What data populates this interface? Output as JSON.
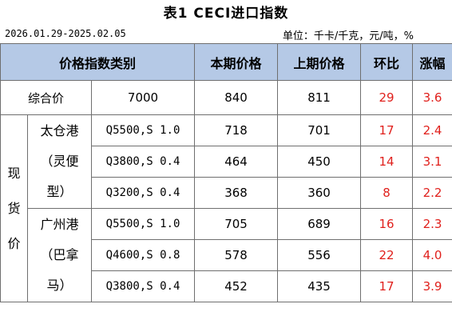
{
  "title": "表1  CECI进口指数",
  "date_range": "2026.01.29-2025.02.05",
  "unit": "单位：千卡/千克，元/吨，%",
  "headers": {
    "category": "价格指数类别",
    "current": "本期价格",
    "previous": "上期价格",
    "change": "环比",
    "pct": "涨幅"
  },
  "summary": {
    "label": "综合价",
    "value": "7000",
    "current": "840",
    "previous": "811",
    "change": "29",
    "pct": "3.6"
  },
  "spot_label_lines": [
    "现",
    "货",
    "价"
  ],
  "groups": [
    {
      "port_lines": [
        "太仓港",
        "（灵便",
        "型）"
      ],
      "rows": [
        {
          "spec": "Q5500,S 1.0",
          "current": "718",
          "previous": "701",
          "change": "17",
          "pct": "2.4"
        },
        {
          "spec": "Q3800,S 0.4",
          "current": "464",
          "previous": "450",
          "change": "14",
          "pct": "3.1"
        },
        {
          "spec": "Q3200,S 0.4",
          "current": "368",
          "previous": "360",
          "change": "8",
          "pct": "2.2"
        }
      ]
    },
    {
      "port_lines": [
        "广州港",
        "（巴拿",
        "马）"
      ],
      "rows": [
        {
          "spec": "Q5500,S 1.0",
          "current": "705",
          "previous": "689",
          "change": "16",
          "pct": "2.3"
        },
        {
          "spec": "Q4600,S 0.8",
          "current": "578",
          "previous": "556",
          "change": "22",
          "pct": "4.0"
        },
        {
          "spec": "Q3800,S 0.4",
          "current": "452",
          "previous": "435",
          "change": "17",
          "pct": "3.9"
        }
      ]
    }
  ],
  "colors": {
    "header_bg": "#b5c9e6",
    "positive": "#e0201c"
  }
}
